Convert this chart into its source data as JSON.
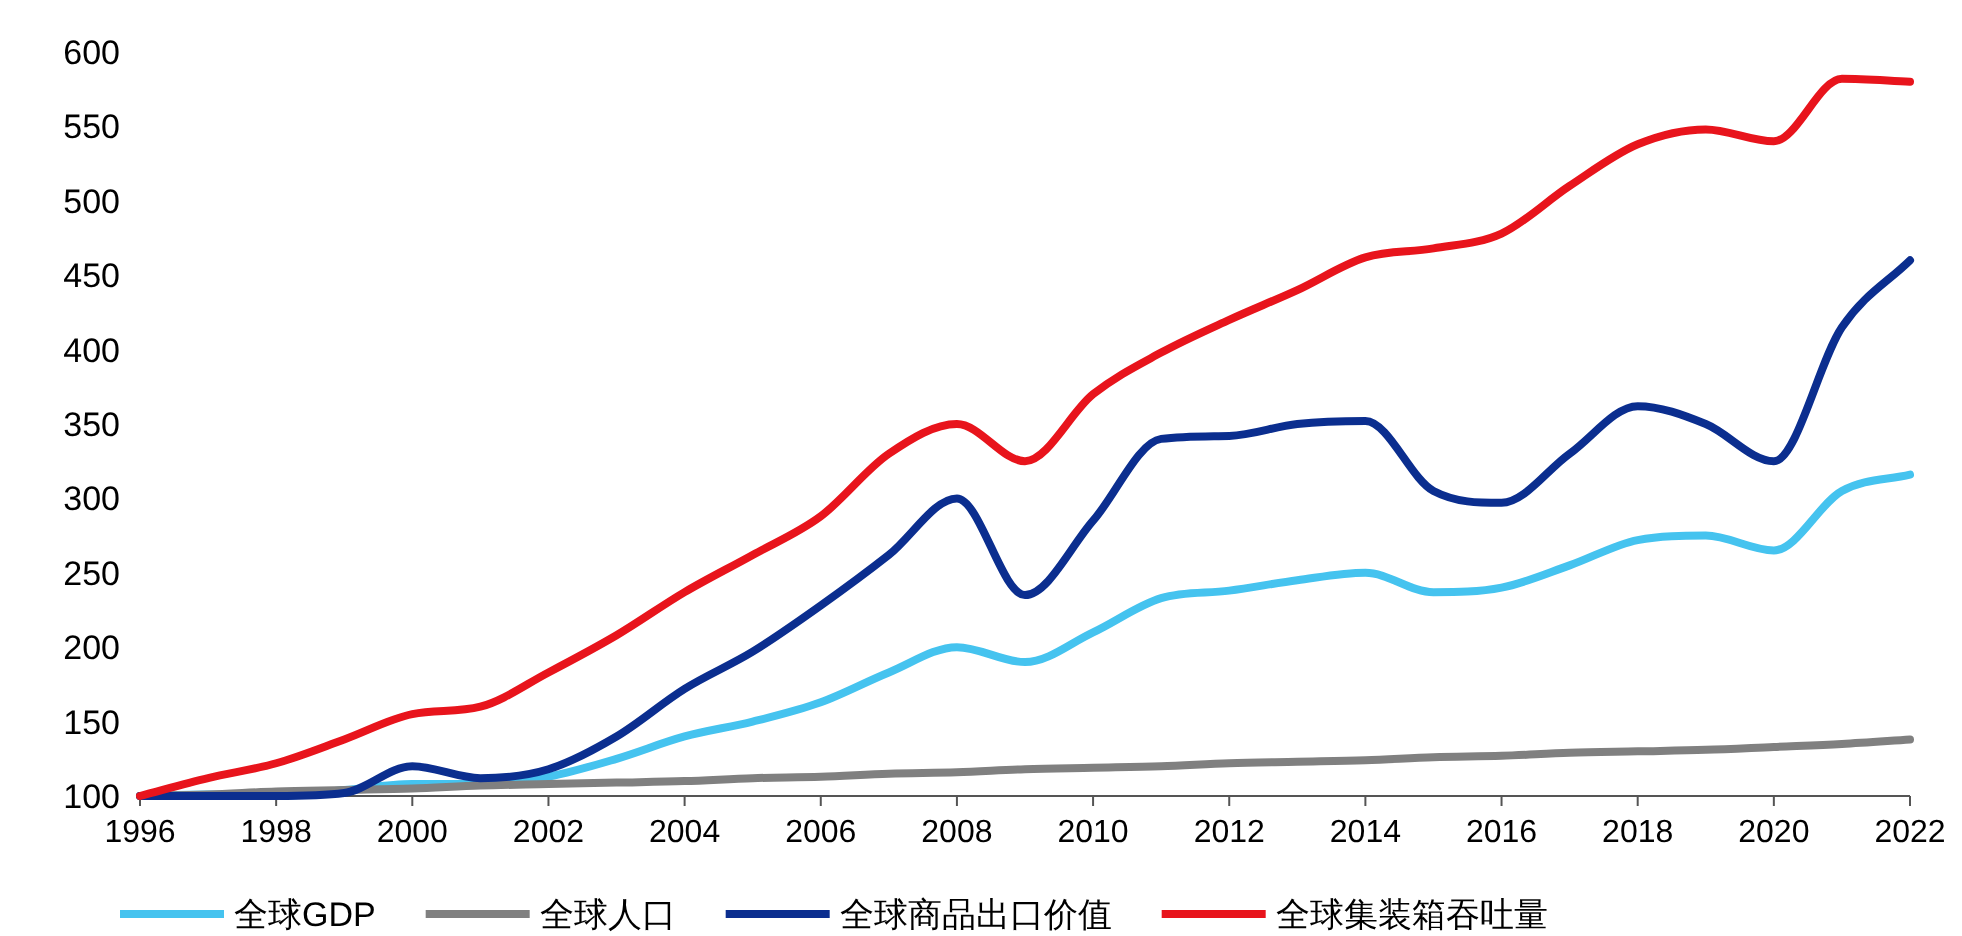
{
  "chart_data": {
    "type": "line",
    "x": [
      1996,
      1997,
      1998,
      1999,
      2000,
      2001,
      2002,
      2003,
      2004,
      2005,
      2006,
      2007,
      2008,
      2009,
      2010,
      2011,
      2012,
      2013,
      2014,
      2015,
      2016,
      2017,
      2018,
      2019,
      2020,
      2021,
      2022
    ],
    "xlim": [
      1996,
      2022
    ],
    "xticks": [
      1996,
      1998,
      2000,
      2002,
      2004,
      2006,
      2008,
      2010,
      2012,
      2014,
      2016,
      2018,
      2020,
      2022
    ],
    "ylim": [
      100,
      600
    ],
    "yticks": [
      100,
      150,
      200,
      250,
      300,
      350,
      400,
      450,
      500,
      550,
      600
    ],
    "legend": "bottom",
    "series": [
      {
        "name": "全球GDP",
        "color": "#45c3ef",
        "values": [
          100,
          101,
          100,
          104,
          108,
          108,
          113,
          125,
          140,
          150,
          163,
          183,
          200,
          190,
          210,
          233,
          238,
          245,
          250,
          237,
          240,
          255,
          272,
          275,
          265,
          305,
          316
        ]
      },
      {
        "name": "全球人口",
        "color": "#808080",
        "values": [
          100,
          101,
          103,
          104,
          105,
          107,
          108,
          109,
          110,
          112,
          113,
          115,
          116,
          118,
          119,
          120,
          122,
          123,
          124,
          126,
          127,
          129,
          130,
          131,
          133,
          135,
          138
        ]
      },
      {
        "name": "全球商品出口价值",
        "color": "#0b2e8f",
        "values": [
          100,
          100,
          100,
          102,
          120,
          112,
          118,
          140,
          172,
          197,
          228,
          262,
          300,
          235,
          285,
          340,
          342,
          350,
          352,
          305,
          297,
          330,
          362,
          350,
          325,
          415,
          460
        ]
      },
      {
        "name": "全球集装箱吞吐量",
        "color": "#e8141c",
        "values": [
          100,
          112,
          122,
          138,
          155,
          160,
          183,
          208,
          237,
          262,
          288,
          330,
          350,
          325,
          370,
          398,
          420,
          440,
          462,
          468,
          478,
          510,
          538,
          548,
          540,
          582,
          580
        ]
      }
    ]
  }
}
